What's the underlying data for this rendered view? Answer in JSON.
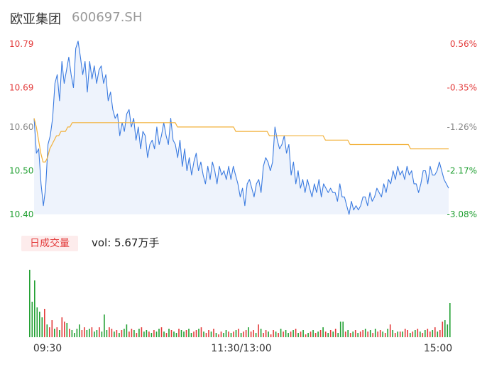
{
  "stock": {
    "name": "欧亚集团",
    "code": "600697.SH"
  },
  "volume_label": "日成交量",
  "volume_text": "vol: 5.67万手",
  "colors": {
    "price_line": "#3b7be0",
    "avg_line": "#f2b13a",
    "up": "#e33b3b",
    "down": "#22a033",
    "flat": "#888888",
    "area": "#eef3fc"
  },
  "chart_data": [
    {
      "type": "line",
      "title": "",
      "ylim": [
        10.4,
        10.79
      ],
      "y_ticks": [
        {
          "value": 10.79,
          "label": "10.79",
          "pct": "0.56%",
          "color": "up"
        },
        {
          "value": 10.69,
          "label": "10.69",
          "pct": "-0.35%",
          "color": "up"
        },
        {
          "value": 10.6,
          "label": "10.60",
          "pct": "-1.26%",
          "color": "flat"
        },
        {
          "value": 10.5,
          "label": "10.50",
          "pct": "-2.17%",
          "color": "down"
        },
        {
          "value": 10.4,
          "label": "10.40",
          "pct": "-3.08%",
          "color": "down"
        }
      ],
      "x_ticks": [
        "09:30",
        "11:30/13:00",
        "15:00"
      ],
      "series": [
        {
          "values": [
            10.62,
            10.54,
            10.55,
            10.47,
            10.42,
            10.46,
            10.56,
            10.58,
            10.62,
            10.7,
            10.72,
            10.66,
            10.75,
            10.7,
            10.73,
            10.76,
            10.72,
            10.69,
            10.78,
            10.8,
            10.76,
            10.72,
            10.75,
            10.68,
            10.75,
            10.71,
            10.74,
            10.7,
            10.73,
            10.74,
            10.7,
            10.72,
            10.66,
            10.68,
            10.64,
            10.62,
            10.63,
            10.58,
            10.61,
            10.59,
            10.63,
            10.64,
            10.6,
            10.62,
            10.57,
            10.6,
            10.55,
            10.59,
            10.58,
            10.53,
            10.56,
            10.57,
            10.55,
            10.6,
            10.56,
            10.58,
            10.61,
            10.58,
            10.56,
            10.62,
            10.57,
            10.56,
            10.53,
            10.57,
            10.51,
            10.55,
            10.5,
            10.53,
            10.49,
            10.52,
            10.54,
            10.5,
            10.52,
            10.49,
            10.47,
            10.51,
            10.48,
            10.52,
            10.5,
            10.47,
            10.51,
            10.49,
            10.5,
            10.48,
            10.51,
            10.48,
            10.51,
            10.49,
            10.47,
            10.44,
            10.46,
            10.42,
            10.47,
            10.48,
            10.46,
            10.44,
            10.47,
            10.48,
            10.45,
            10.51,
            10.53,
            10.52,
            10.5,
            10.52,
            10.6,
            10.57,
            10.55,
            10.56,
            10.58,
            10.54,
            10.56,
            10.49,
            10.52,
            10.47,
            10.5,
            10.46,
            10.48,
            10.45,
            10.48,
            10.46,
            10.44,
            10.47,
            10.45,
            10.48,
            10.44,
            10.47,
            10.46,
            10.45,
            10.46,
            10.45,
            10.45,
            10.43,
            10.47,
            10.44,
            10.44,
            10.42,
            10.4,
            10.43,
            10.41,
            10.42,
            10.41,
            10.42,
            10.44,
            10.44,
            10.42,
            10.45,
            10.43,
            10.44,
            10.46,
            10.45,
            10.44,
            10.47,
            10.45,
            10.48,
            10.47,
            10.5,
            10.48,
            10.51,
            10.49,
            10.5,
            10.48,
            10.51,
            10.49,
            10.5,
            10.47,
            10.47,
            10.45,
            10.47,
            10.5,
            10.5,
            10.47,
            10.51,
            10.49,
            10.49,
            10.5,
            10.52,
            10.5,
            10.48,
            10.47,
            10.46
          ],
          "color": "price_line"
        },
        {
          "values": [
            10.62,
            10.6,
            10.57,
            10.54,
            10.52,
            10.52,
            10.53,
            10.55,
            10.56,
            10.57,
            10.58,
            10.58,
            10.59,
            10.59,
            10.59,
            10.6,
            10.6,
            10.61,
            10.61,
            10.61,
            10.61,
            10.61,
            10.61,
            10.61,
            10.61,
            10.61,
            10.61,
            10.61,
            10.61,
            10.61,
            10.61,
            10.61,
            10.61,
            10.61,
            10.61,
            10.61,
            10.61,
            10.61,
            10.61,
            10.61,
            10.61,
            10.61,
            10.61,
            10.61,
            10.61,
            10.61,
            10.61,
            10.61,
            10.61,
            10.61,
            10.61,
            10.61,
            10.61,
            10.61,
            10.61,
            10.61,
            10.61,
            10.61,
            10.61,
            10.61,
            10.61,
            10.61,
            10.61,
            10.61,
            10.6,
            10.6,
            10.6,
            10.6,
            10.6,
            10.6,
            10.6,
            10.6,
            10.6,
            10.6,
            10.6,
            10.6,
            10.6,
            10.6,
            10.6,
            10.6,
            10.6,
            10.6,
            10.6,
            10.6,
            10.6,
            10.6,
            10.6,
            10.6,
            10.6,
            10.6,
            10.59,
            10.59,
            10.59,
            10.59,
            10.59,
            10.59,
            10.59,
            10.59,
            10.59,
            10.59,
            10.59,
            10.59,
            10.59,
            10.59,
            10.59,
            10.58,
            10.58,
            10.58,
            10.58,
            10.58,
            10.58,
            10.58,
            10.58,
            10.58,
            10.58,
            10.58,
            10.58,
            10.58,
            10.58,
            10.58,
            10.58,
            10.58,
            10.58,
            10.58,
            10.58,
            10.58,
            10.58,
            10.58,
            10.58,
            10.58,
            10.57,
            10.57,
            10.57,
            10.57,
            10.57,
            10.57,
            10.57,
            10.57,
            10.57,
            10.57,
            10.57,
            10.56,
            10.56,
            10.56,
            10.56,
            10.56,
            10.56,
            10.56,
            10.56,
            10.56,
            10.56,
            10.56,
            10.56,
            10.56,
            10.56,
            10.56,
            10.56,
            10.56,
            10.56,
            10.56,
            10.56,
            10.56,
            10.56,
            10.56,
            10.56,
            10.56,
            10.56,
            10.56,
            10.55,
            10.55,
            10.55,
            10.55,
            10.55,
            10.55,
            10.55,
            10.55,
            10.55,
            10.55,
            10.55,
            10.55,
            10.55,
            10.55,
            10.55,
            10.55,
            10.55,
            10.55
          ],
          "color": "avg_line"
        }
      ]
    },
    {
      "type": "bar",
      "title": "",
      "values": [
        95,
        50,
        80,
        42,
        36,
        28,
        40,
        18,
        14,
        24,
        12,
        14,
        10,
        28,
        22,
        20,
        12,
        10,
        6,
        12,
        18,
        10,
        14,
        10,
        12,
        14,
        8,
        10,
        14,
        8,
        32,
        10,
        14,
        12,
        8,
        10,
        6,
        10,
        12,
        18,
        8,
        12,
        10,
        6,
        12,
        14,
        8,
        10,
        8,
        6,
        10,
        8,
        12,
        14,
        8,
        6,
        12,
        10,
        8,
        6,
        12,
        10,
        8,
        10,
        12,
        6,
        8,
        10,
        12,
        14,
        8,
        6,
        10,
        8,
        12,
        6,
        4,
        8,
        6,
        10,
        8,
        6,
        8,
        10,
        12,
        6,
        8,
        10,
        14,
        8,
        10,
        6,
        18,
        12,
        6,
        10,
        8,
        4,
        10,
        8,
        6,
        12,
        8,
        10,
        6,
        8,
        10,
        12,
        6,
        8,
        10,
        4,
        6,
        8,
        10,
        6,
        8,
        10,
        14,
        8,
        6,
        10,
        8,
        12,
        6,
        22,
        22,
        8,
        10,
        6,
        8,
        10,
        6,
        8,
        10,
        12,
        8,
        10,
        6,
        12,
        8,
        10,
        8,
        6,
        12,
        18,
        10,
        6,
        8,
        8,
        8,
        12,
        10,
        6,
        8,
        10,
        12,
        8,
        6,
        10,
        12,
        8,
        10,
        14,
        8,
        10,
        22,
        24,
        18,
        48
      ],
      "colors": [
        "down",
        "down",
        "down",
        "down",
        "down",
        "down",
        "up",
        "down",
        "up",
        "up",
        "down",
        "up",
        "down",
        "up",
        "up",
        "down",
        "up",
        "down",
        "down",
        "down",
        "down",
        "up",
        "up",
        "down",
        "down",
        "up",
        "down",
        "down",
        "up",
        "down",
        "down",
        "down",
        "up",
        "up",
        "down",
        "up",
        "down",
        "up",
        "down",
        "down",
        "up",
        "up",
        "down",
        "up",
        "down",
        "up",
        "down",
        "down",
        "up",
        "down",
        "up",
        "down",
        "down",
        "up",
        "down",
        "up",
        "down",
        "up",
        "down",
        "down",
        "up",
        "down",
        "down",
        "up",
        "down",
        "down",
        "up",
        "up",
        "down",
        "up",
        "down",
        "up",
        "up",
        "down",
        "up",
        "down",
        "up",
        "up",
        "down",
        "down",
        "up",
        "down",
        "up",
        "down",
        "up",
        "down",
        "up",
        "up",
        "down",
        "up",
        "up",
        "down",
        "up",
        "down",
        "up",
        "up",
        "down",
        "up",
        "up",
        "down",
        "up",
        "down",
        "up",
        "down",
        "down",
        "up",
        "down",
        "up",
        "down",
        "up",
        "down",
        "up",
        "down",
        "up",
        "down",
        "up",
        "down",
        "up",
        "down",
        "up",
        "down",
        "up",
        "down",
        "up",
        "down",
        "down",
        "down",
        "up",
        "down",
        "up",
        "down",
        "up",
        "down",
        "up",
        "up",
        "down",
        "up",
        "down",
        "up",
        "down",
        "up",
        "up",
        "down",
        "up",
        "down",
        "up",
        "down",
        "up",
        "down",
        "up",
        "down",
        "up",
        "up",
        "down",
        "up",
        "down",
        "up",
        "down",
        "up",
        "down",
        "up",
        "up",
        "down",
        "up",
        "down",
        "up",
        "up",
        "down",
        "down",
        "down",
        "down",
        "up"
      ]
    }
  ]
}
